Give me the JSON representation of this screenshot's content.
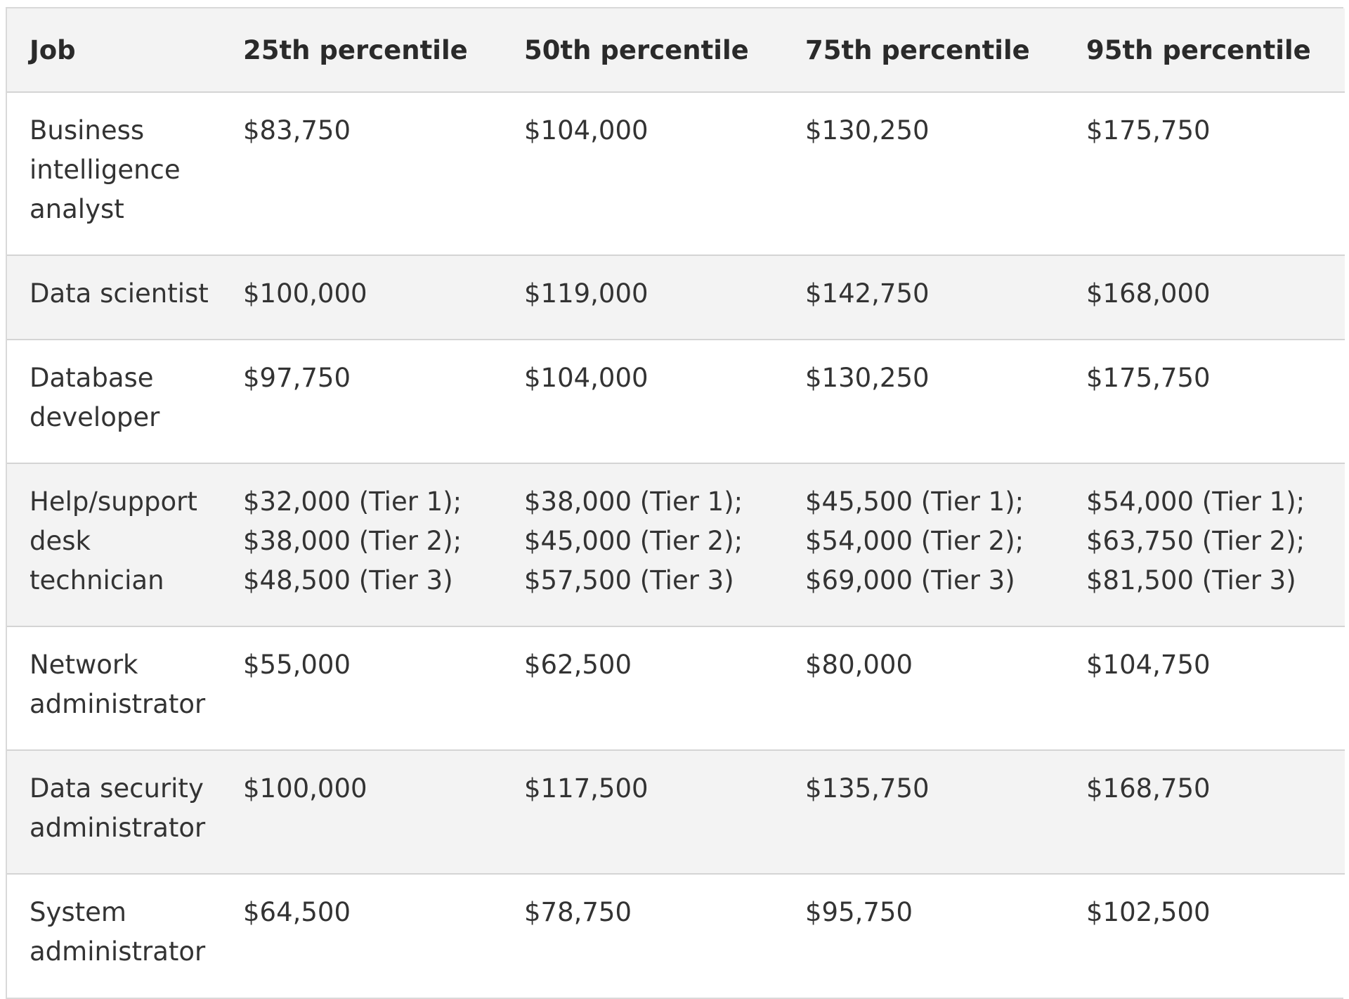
{
  "table": {
    "headers": [
      "Job",
      "25th percentile",
      "50th percentile",
      "75th percentile",
      "95th percentile"
    ],
    "rows": [
      {
        "job": [
          "Business",
          "intelligence",
          "analyst"
        ],
        "p25": [
          "$83,750"
        ],
        "p50": [
          "$104,000"
        ],
        "p75": [
          "$130,250"
        ],
        "p95": [
          "$175,750"
        ]
      },
      {
        "job": [
          "Data scientist"
        ],
        "p25": [
          "$100,000"
        ],
        "p50": [
          "$119,000"
        ],
        "p75": [
          "$142,750"
        ],
        "p95": [
          "$168,000"
        ]
      },
      {
        "job": [
          "Database",
          "developer"
        ],
        "p25": [
          "$97,750"
        ],
        "p50": [
          "$104,000"
        ],
        "p75": [
          "$130,250"
        ],
        "p95": [
          "$175,750"
        ]
      },
      {
        "job": [
          "Help/support",
          "desk",
          "technician"
        ],
        "p25": [
          "$32,000 (Tier 1);",
          "$38,000 (Tier 2);",
          "$48,500 (Tier 3)"
        ],
        "p50": [
          "$38,000 (Tier 1);",
          "$45,000 (Tier 2);",
          "$57,500 (Tier 3)"
        ],
        "p75": [
          "$45,500 (Tier 1);",
          "$54,000 (Tier 2);",
          "$69,000 (Tier 3)"
        ],
        "p95": [
          "$54,000 (Tier 1);",
          "$63,750 (Tier 2);",
          "$81,500 (Tier 3)"
        ]
      },
      {
        "job": [
          "Network",
          "administrator"
        ],
        "p25": [
          "$55,000"
        ],
        "p50": [
          "$62,500"
        ],
        "p75": [
          "$80,000"
        ],
        "p95": [
          "$104,750"
        ]
      },
      {
        "job": [
          "Data security",
          "administrator"
        ],
        "p25": [
          "$100,000"
        ],
        "p50": [
          "$117,500"
        ],
        "p75": [
          "$135,750"
        ],
        "p95": [
          "$168,750"
        ]
      },
      {
        "job": [
          "System",
          "administrator"
        ],
        "p25": [
          "$64,500"
        ],
        "p50": [
          "$78,750"
        ],
        "p75": [
          "$95,750"
        ],
        "p95": [
          "$102,500"
        ]
      }
    ]
  }
}
